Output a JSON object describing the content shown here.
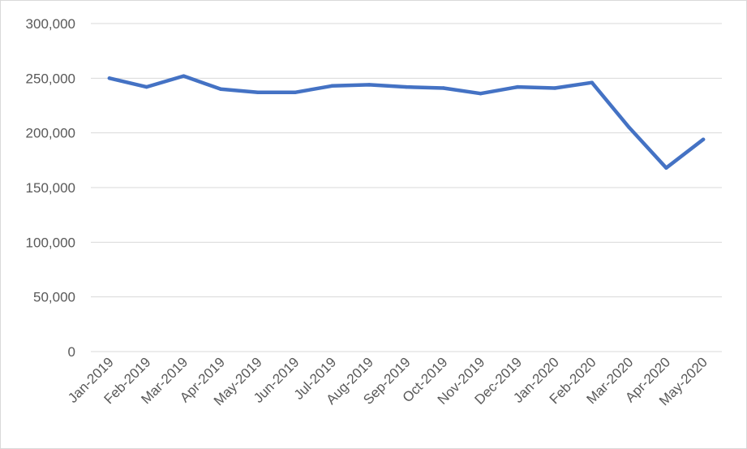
{
  "chart_data": {
    "type": "line",
    "title": "",
    "xlabel": "",
    "ylabel": "",
    "categories": [
      "Jan-2019",
      "Feb-2019",
      "Mar-2019",
      "Apr-2019",
      "May-2019",
      "Jun-2019",
      "Jul-2019",
      "Aug-2019",
      "Sep-2019",
      "Oct-2019",
      "Nov-2019",
      "Dec-2019",
      "Jan-2020",
      "Feb-2020",
      "Mar-2020",
      "Apr-2020",
      "May-2020"
    ],
    "series": [
      {
        "values": [
          250000,
          242000,
          252000,
          240000,
          237000,
          237000,
          243000,
          244000,
          242000,
          241000,
          236000,
          242000,
          241000,
          246000,
          205000,
          168000,
          194000
        ],
        "color": "#4472C4"
      }
    ],
    "ylim": [
      0,
      300000
    ],
    "yticks": [
      0,
      50000,
      100000,
      150000,
      200000,
      250000,
      300000
    ],
    "ytick_labels": [
      "0",
      "50,000",
      "100,000",
      "150,000",
      "200,000",
      "250,000",
      "300,000"
    ],
    "grid": true,
    "legend": "none"
  }
}
